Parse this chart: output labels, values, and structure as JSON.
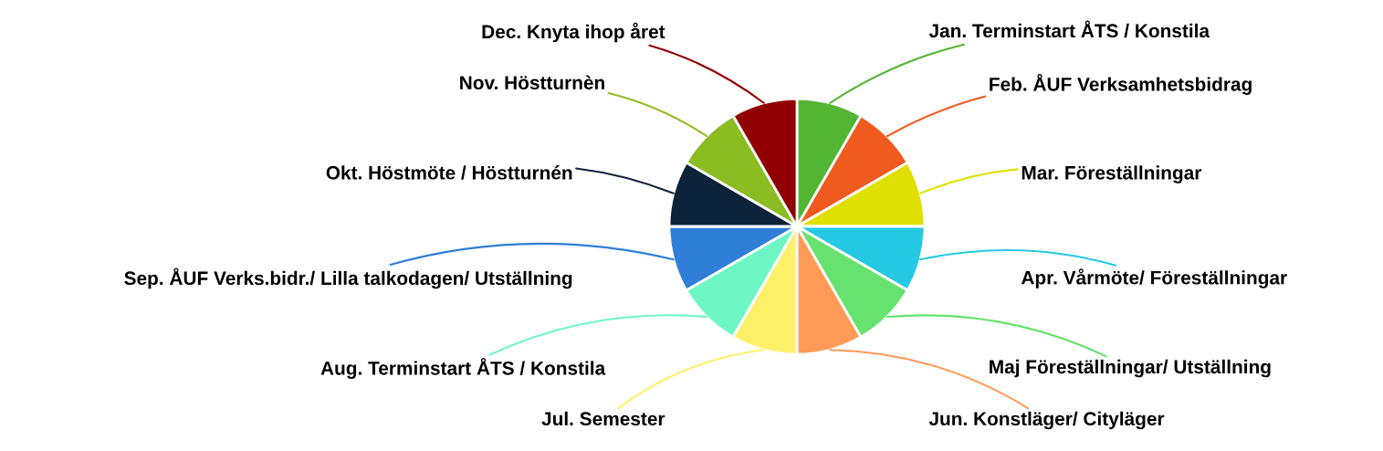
{
  "chart_data": {
    "type": "pie",
    "categories": [
      "Jan. Terminstart ÅTS / Konstila",
      "Feb. ÅUF Verksamhetsbidrag",
      "Mar. Föreställningar",
      "Apr. Vårmöte/ Föreställningar",
      "Maj Föreställningar/ Utställning",
      "Jun. Konstläger/ Cityläger",
      "Jul. Semester",
      "Aug. Terminstart ÅTS / Konstila",
      "Sep. ÅUF Verks.bidr./ Lilla talkodagen/ Utställning",
      "Okt. Höstmöte / Höstturnén",
      "Nov. Höstturnèn",
      "Dec. Knyta ihop året"
    ],
    "values": [
      8.34,
      8.33,
      8.33,
      8.34,
      8.33,
      8.33,
      8.34,
      8.33,
      8.33,
      8.34,
      8.33,
      8.33
    ],
    "colors": [
      "#53b534",
      "#ef5a1e",
      "#e0e000",
      "#26c9e3",
      "#66e36e",
      "#ff9a57",
      "#fff06a",
      "#6ef7c5",
      "#2f7ed8",
      "#0d233a",
      "#8bbc21",
      "#910000"
    ]
  }
}
